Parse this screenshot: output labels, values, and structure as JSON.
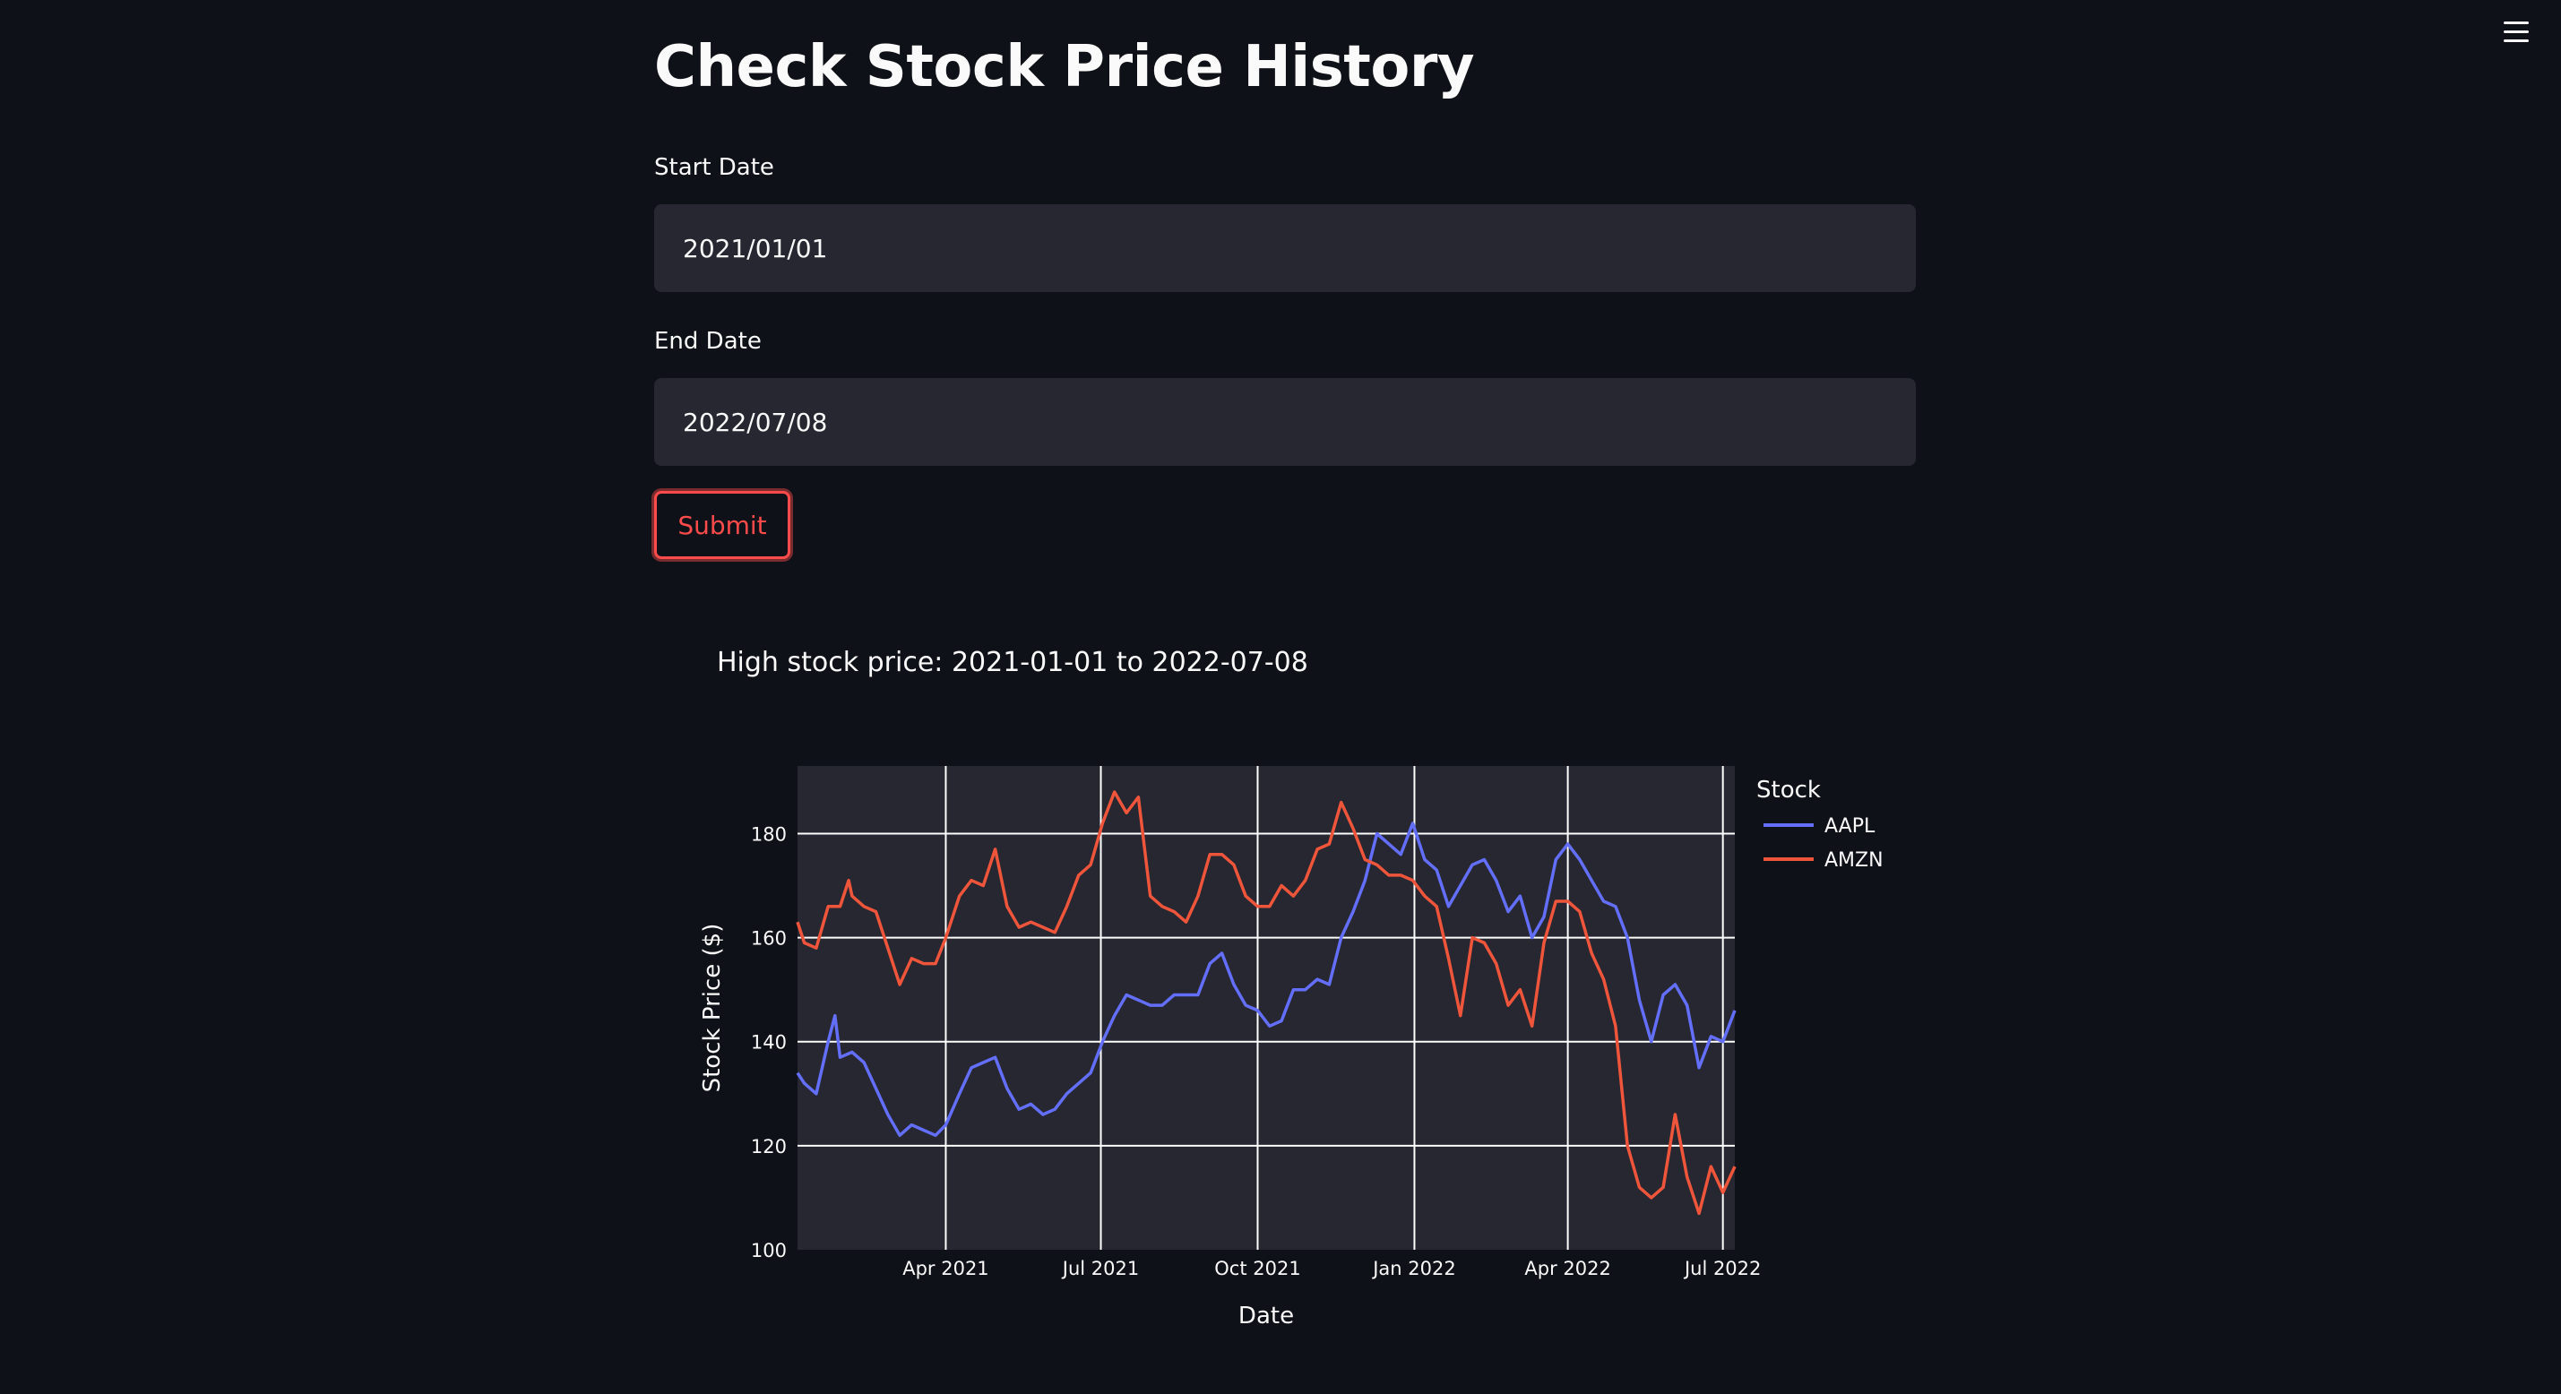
{
  "page": {
    "title": "Check Stock Price History",
    "menu_icon": "hamburger-menu-icon"
  },
  "form": {
    "start_label": "Start Date",
    "start_value": "2021/01/01",
    "end_label": "End Date",
    "end_value": "2022/07/08",
    "submit_label": "Submit"
  },
  "colors": {
    "background": "#0e1117",
    "input_bg": "#262730",
    "accent": "#ff4b4b",
    "plot_bg": "#262730",
    "aapl": "#636efa",
    "amzn": "#ef553b"
  },
  "chart_data": {
    "type": "line",
    "title": "High stock price: 2021-01-01 to 2022-07-08",
    "xlabel": "Date",
    "ylabel": "Stock Price ($)",
    "x_range": [
      "2021-01-04",
      "2022-07-08"
    ],
    "ylim": [
      100,
      193
    ],
    "yticks": [
      100,
      120,
      140,
      160,
      180
    ],
    "xticks": [
      {
        "date": "2021-04-01",
        "label": "Apr 2021"
      },
      {
        "date": "2021-07-01",
        "label": "Jul 2021"
      },
      {
        "date": "2021-10-01",
        "label": "Oct 2021"
      },
      {
        "date": "2022-01-01",
        "label": "Jan 2022"
      },
      {
        "date": "2022-04-01",
        "label": "Apr 2022"
      },
      {
        "date": "2022-07-01",
        "label": "Jul 2022"
      }
    ],
    "grid": true,
    "legend_title": "Stock",
    "legend_position": "right",
    "series": [
      {
        "name": "AAPL",
        "color": "#636efa",
        "points": [
          [
            "2021-01-04",
            134
          ],
          [
            "2021-01-08",
            132
          ],
          [
            "2021-01-15",
            130
          ],
          [
            "2021-01-22",
            140
          ],
          [
            "2021-01-26",
            145
          ],
          [
            "2021-01-29",
            137
          ],
          [
            "2021-02-05",
            138
          ],
          [
            "2021-02-12",
            136
          ],
          [
            "2021-02-19",
            131
          ],
          [
            "2021-02-26",
            126
          ],
          [
            "2021-03-05",
            122
          ],
          [
            "2021-03-12",
            124
          ],
          [
            "2021-03-19",
            123
          ],
          [
            "2021-03-26",
            122
          ],
          [
            "2021-04-01",
            124
          ],
          [
            "2021-04-09",
            130
          ],
          [
            "2021-04-16",
            135
          ],
          [
            "2021-04-23",
            136
          ],
          [
            "2021-04-30",
            137
          ],
          [
            "2021-05-07",
            131
          ],
          [
            "2021-05-14",
            127
          ],
          [
            "2021-05-21",
            128
          ],
          [
            "2021-05-28",
            126
          ],
          [
            "2021-06-04",
            127
          ],
          [
            "2021-06-11",
            130
          ],
          [
            "2021-06-18",
            132
          ],
          [
            "2021-06-25",
            134
          ],
          [
            "2021-07-02",
            140
          ],
          [
            "2021-07-09",
            145
          ],
          [
            "2021-07-16",
            149
          ],
          [
            "2021-07-23",
            148
          ],
          [
            "2021-07-30",
            147
          ],
          [
            "2021-08-06",
            147
          ],
          [
            "2021-08-13",
            149
          ],
          [
            "2021-08-20",
            149
          ],
          [
            "2021-08-27",
            149
          ],
          [
            "2021-09-03",
            155
          ],
          [
            "2021-09-10",
            157
          ],
          [
            "2021-09-17",
            151
          ],
          [
            "2021-09-24",
            147
          ],
          [
            "2021-10-01",
            146
          ],
          [
            "2021-10-08",
            143
          ],
          [
            "2021-10-15",
            144
          ],
          [
            "2021-10-22",
            150
          ],
          [
            "2021-10-29",
            150
          ],
          [
            "2021-11-05",
            152
          ],
          [
            "2021-11-12",
            151
          ],
          [
            "2021-11-19",
            160
          ],
          [
            "2021-11-26",
            165
          ],
          [
            "2021-12-03",
            171
          ],
          [
            "2021-12-10",
            180
          ],
          [
            "2021-12-17",
            178
          ],
          [
            "2021-12-24",
            176
          ],
          [
            "2021-12-31",
            182
          ],
          [
            "2022-01-07",
            175
          ],
          [
            "2022-01-14",
            173
          ],
          [
            "2022-01-21",
            166
          ],
          [
            "2022-01-28",
            170
          ],
          [
            "2022-02-04",
            174
          ],
          [
            "2022-02-11",
            175
          ],
          [
            "2022-02-18",
            171
          ],
          [
            "2022-02-25",
            165
          ],
          [
            "2022-03-04",
            168
          ],
          [
            "2022-03-11",
            160
          ],
          [
            "2022-03-18",
            164
          ],
          [
            "2022-03-25",
            175
          ],
          [
            "2022-04-01",
            178
          ],
          [
            "2022-04-08",
            175
          ],
          [
            "2022-04-15",
            171
          ],
          [
            "2022-04-22",
            167
          ],
          [
            "2022-04-29",
            166
          ],
          [
            "2022-05-06",
            160
          ],
          [
            "2022-05-13",
            148
          ],
          [
            "2022-05-20",
            140
          ],
          [
            "2022-05-27",
            149
          ],
          [
            "2022-06-03",
            151
          ],
          [
            "2022-06-10",
            147
          ],
          [
            "2022-06-17",
            135
          ],
          [
            "2022-06-24",
            141
          ],
          [
            "2022-07-01",
            140
          ],
          [
            "2022-07-08",
            146
          ]
        ]
      },
      {
        "name": "AMZN",
        "color": "#ef553b",
        "points": [
          [
            "2021-01-04",
            163
          ],
          [
            "2021-01-08",
            159
          ],
          [
            "2021-01-15",
            158
          ],
          [
            "2021-01-22",
            166
          ],
          [
            "2021-01-29",
            166
          ],
          [
            "2021-02-03",
            171
          ],
          [
            "2021-02-05",
            168
          ],
          [
            "2021-02-12",
            166
          ],
          [
            "2021-02-19",
            165
          ],
          [
            "2021-02-26",
            158
          ],
          [
            "2021-03-05",
            151
          ],
          [
            "2021-03-12",
            156
          ],
          [
            "2021-03-19",
            155
          ],
          [
            "2021-03-26",
            155
          ],
          [
            "2021-04-01",
            160
          ],
          [
            "2021-04-09",
            168
          ],
          [
            "2021-04-16",
            171
          ],
          [
            "2021-04-23",
            170
          ],
          [
            "2021-04-30",
            177
          ],
          [
            "2021-05-07",
            166
          ],
          [
            "2021-05-14",
            162
          ],
          [
            "2021-05-21",
            163
          ],
          [
            "2021-05-28",
            162
          ],
          [
            "2021-06-04",
            161
          ],
          [
            "2021-06-11",
            166
          ],
          [
            "2021-06-18",
            172
          ],
          [
            "2021-06-25",
            174
          ],
          [
            "2021-07-02",
            182
          ],
          [
            "2021-07-09",
            188
          ],
          [
            "2021-07-16",
            184
          ],
          [
            "2021-07-23",
            187
          ],
          [
            "2021-07-30",
            168
          ],
          [
            "2021-08-06",
            166
          ],
          [
            "2021-08-13",
            165
          ],
          [
            "2021-08-20",
            163
          ],
          [
            "2021-08-27",
            168
          ],
          [
            "2021-09-03",
            176
          ],
          [
            "2021-09-10",
            176
          ],
          [
            "2021-09-17",
            174
          ],
          [
            "2021-09-24",
            168
          ],
          [
            "2021-10-01",
            166
          ],
          [
            "2021-10-08",
            166
          ],
          [
            "2021-10-15",
            170
          ],
          [
            "2021-10-22",
            168
          ],
          [
            "2021-10-29",
            171
          ],
          [
            "2021-11-05",
            177
          ],
          [
            "2021-11-12",
            178
          ],
          [
            "2021-11-19",
            186
          ],
          [
            "2021-11-26",
            181
          ],
          [
            "2021-12-03",
            175
          ],
          [
            "2021-12-10",
            174
          ],
          [
            "2021-12-17",
            172
          ],
          [
            "2021-12-24",
            172
          ],
          [
            "2021-12-31",
            171
          ],
          [
            "2022-01-07",
            168
          ],
          [
            "2022-01-14",
            166
          ],
          [
            "2022-01-21",
            156
          ],
          [
            "2022-01-28",
            145
          ],
          [
            "2022-02-04",
            160
          ],
          [
            "2022-02-11",
            159
          ],
          [
            "2022-02-18",
            155
          ],
          [
            "2022-02-25",
            147
          ],
          [
            "2022-03-04",
            150
          ],
          [
            "2022-03-11",
            143
          ],
          [
            "2022-03-18",
            159
          ],
          [
            "2022-03-25",
            167
          ],
          [
            "2022-04-01",
            167
          ],
          [
            "2022-04-08",
            165
          ],
          [
            "2022-04-15",
            157
          ],
          [
            "2022-04-22",
            152
          ],
          [
            "2022-04-29",
            143
          ],
          [
            "2022-05-06",
            120
          ],
          [
            "2022-05-13",
            112
          ],
          [
            "2022-05-20",
            110
          ],
          [
            "2022-05-27",
            112
          ],
          [
            "2022-06-03",
            126
          ],
          [
            "2022-06-10",
            114
          ],
          [
            "2022-06-17",
            107
          ],
          [
            "2022-06-24",
            116
          ],
          [
            "2022-07-01",
            111
          ],
          [
            "2022-07-08",
            116
          ]
        ]
      }
    ]
  }
}
